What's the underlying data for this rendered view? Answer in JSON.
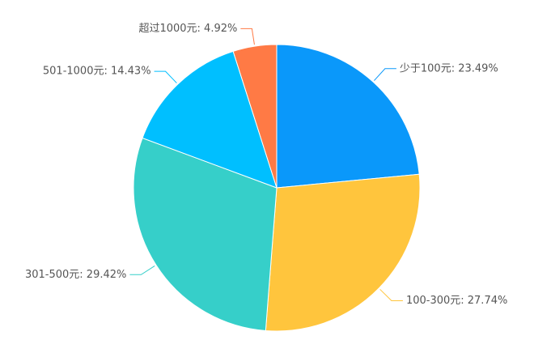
{
  "chart_data": {
    "type": "pie",
    "values": [
      23.49,
      27.74,
      29.42,
      14.43,
      4.92
    ],
    "value_labels": [
      "少于100元: 23.49%",
      "100-300元: 27.74%",
      "301-500元: 29.42%",
      "501-1000元: 14.43%",
      "超过1000元: 4.92%"
    ],
    "colors": [
      "#0a98fa",
      "#ffc53d",
      "#36cfc9",
      "#00bfff",
      "#ff7a45"
    ]
  }
}
